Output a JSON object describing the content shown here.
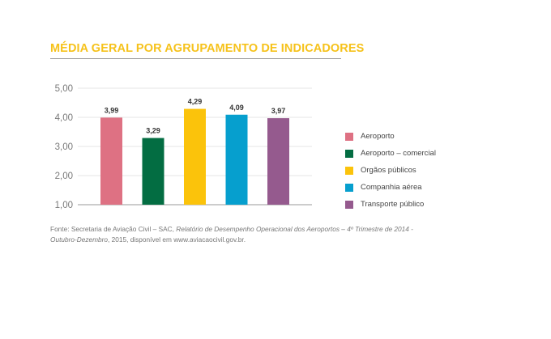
{
  "title": "MÉDIA GERAL POR AGRUPAMENTO DE INDICADORES",
  "colors": {
    "title": "#f6c21b",
    "gridline": "#e4e4e4",
    "axis": "#9a9a9a"
  },
  "chart_data": {
    "type": "bar",
    "title": "MÉDIA GERAL POR AGRUPAMENTO DE INDICADORES",
    "xlabel": "",
    "ylabel": "",
    "ylim": [
      1,
      5
    ],
    "yticks": [
      {
        "value": 5,
        "label": "5,00"
      },
      {
        "value": 4,
        "label": "4,00"
      },
      {
        "value": 3,
        "label": "3,00"
      },
      {
        "value": 2,
        "label": "2,00"
      },
      {
        "value": 1,
        "label": "1,00"
      }
    ],
    "grid": true,
    "legend_position": "right",
    "categories": [
      "Aeroporto",
      "Aeroporto – comercial",
      "Orgãos públicos",
      "Companhia aérea",
      "Transporte público"
    ],
    "values": [
      3.99,
      3.29,
      4.29,
      4.09,
      3.97
    ],
    "value_labels": [
      "3,99",
      "3,29",
      "4,29",
      "4,09",
      "3,97"
    ],
    "bar_colors": [
      "#de7183",
      "#036d42",
      "#fbc30b",
      "#069fce",
      "#955a8e"
    ]
  },
  "source": {
    "prefix": "Fonte: Secretaria de Aviação Civil – SAC, ",
    "italic_title": "Relatório de Desempenho Operacional dos Aeroportos – 4º Trimestre de 2014 - Outubro-Dezembro",
    "suffix": ", 2015, disponível em www.aviacaocivil.gov.br."
  }
}
